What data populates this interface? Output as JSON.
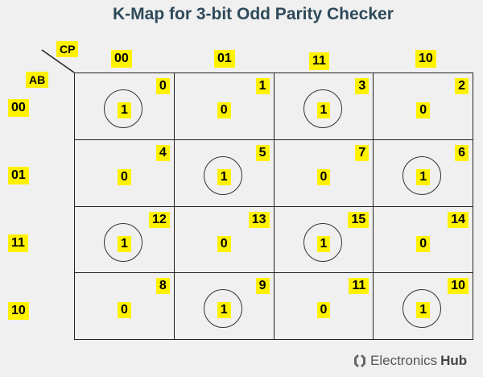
{
  "title": "K-Map for 3-bit Odd Parity Checker",
  "axis": {
    "column_variable": "CP",
    "row_variable": "AB"
  },
  "columns": [
    "00",
    "01",
    "11",
    "10"
  ],
  "rows": [
    "00",
    "01",
    "11",
    "10"
  ],
  "cells": [
    [
      {
        "index": "0",
        "value": "1",
        "circled": true
      },
      {
        "index": "1",
        "value": "0",
        "circled": false
      },
      {
        "index": "3",
        "value": "1",
        "circled": true
      },
      {
        "index": "2",
        "value": "0",
        "circled": false
      }
    ],
    [
      {
        "index": "4",
        "value": "0",
        "circled": false
      },
      {
        "index": "5",
        "value": "1",
        "circled": true
      },
      {
        "index": "7",
        "value": "0",
        "circled": false
      },
      {
        "index": "6",
        "value": "1",
        "circled": true
      }
    ],
    [
      {
        "index": "12",
        "value": "1",
        "circled": true
      },
      {
        "index": "13",
        "value": "0",
        "circled": false
      },
      {
        "index": "15",
        "value": "1",
        "circled": true
      },
      {
        "index": "14",
        "value": "0",
        "circled": false
      }
    ],
    [
      {
        "index": "8",
        "value": "0",
        "circled": false
      },
      {
        "index": "9",
        "value": "1",
        "circled": true
      },
      {
        "index": "11",
        "value": "0",
        "circled": false
      },
      {
        "index": "10",
        "value": "1",
        "circled": true
      }
    ]
  ],
  "colors": {
    "highlight": "#fff200",
    "title": "#2e4a5a",
    "background": "#f0f0f0"
  },
  "brand": {
    "name_regular": "Electronics",
    "name_bold": "Hub",
    "icon": "electronics-hub-logo-icon"
  }
}
